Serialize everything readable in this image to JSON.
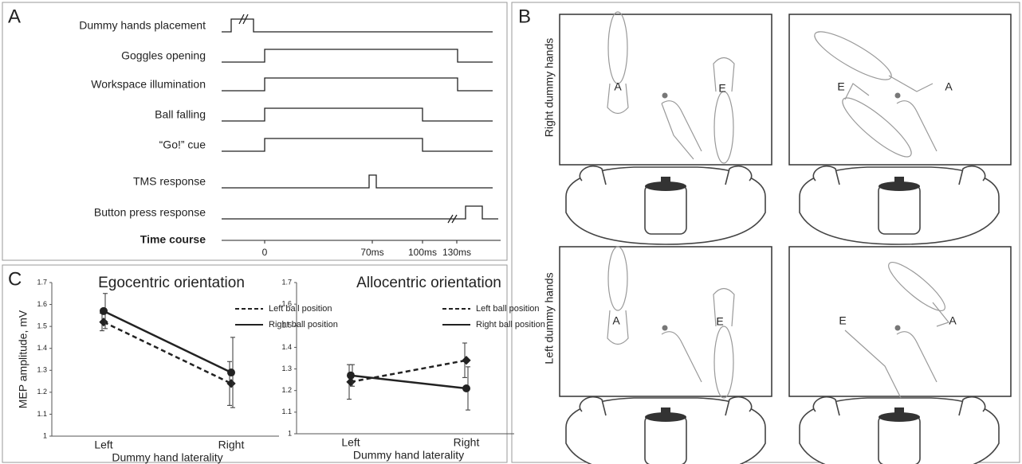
{
  "panels": {
    "a": "A",
    "b": "B",
    "c": "C"
  },
  "timeline": {
    "rows": [
      "Dummy hands placement",
      "Goggles opening",
      "Workspace illumination",
      "Ball falling",
      "“Go!” cue",
      "TMS response",
      "Button press response"
    ],
    "axis_label": "Time course",
    "ticks": [
      "0",
      "70ms",
      "100ms",
      "130ms"
    ]
  },
  "scenes": {
    "rows": [
      "Right dummy hands",
      "Left dummy hands"
    ],
    "hand_labels": [
      "A",
      "E"
    ]
  },
  "chart_data": [
    {
      "type": "line",
      "title": "Egocentric orientation",
      "ylabel": "MEP amplitude, mV",
      "xlabel": "Dummy hand laterality",
      "categories": [
        "Left",
        "Right"
      ],
      "ylim": [
        1,
        1.7
      ],
      "yticks": [
        1,
        1.1,
        1.2,
        1.3,
        1.4,
        1.5,
        1.6,
        1.7
      ],
      "series": [
        {
          "name": "Left ball position",
          "color": "#222222",
          "dash": true,
          "values": [
            1.52,
            1.24
          ],
          "errors": [
            0.04,
            0.1
          ]
        },
        {
          "name": "Right ball position",
          "color": "#222222",
          "dash": false,
          "values": [
            1.57,
            1.29
          ],
          "errors": [
            0.08,
            0.16
          ]
        }
      ]
    },
    {
      "type": "line",
      "title": "Allocentric orientation",
      "xlabel": "Dummy hand laterality",
      "categories": [
        "Left",
        "Right"
      ],
      "ylim": [
        1,
        1.7
      ],
      "yticks": [
        1,
        1.1,
        1.2,
        1.3,
        1.4,
        1.5,
        1.6,
        1.7
      ],
      "series": [
        {
          "name": "Left ball position",
          "color": "#222222",
          "dash": true,
          "values": [
            1.24,
            1.34
          ],
          "errors": [
            0.08,
            0.08
          ]
        },
        {
          "name": "Right ball position",
          "color": "#222222",
          "dash": false,
          "values": [
            1.27,
            1.21
          ],
          "errors": [
            0.05,
            0.1
          ]
        }
      ]
    }
  ]
}
